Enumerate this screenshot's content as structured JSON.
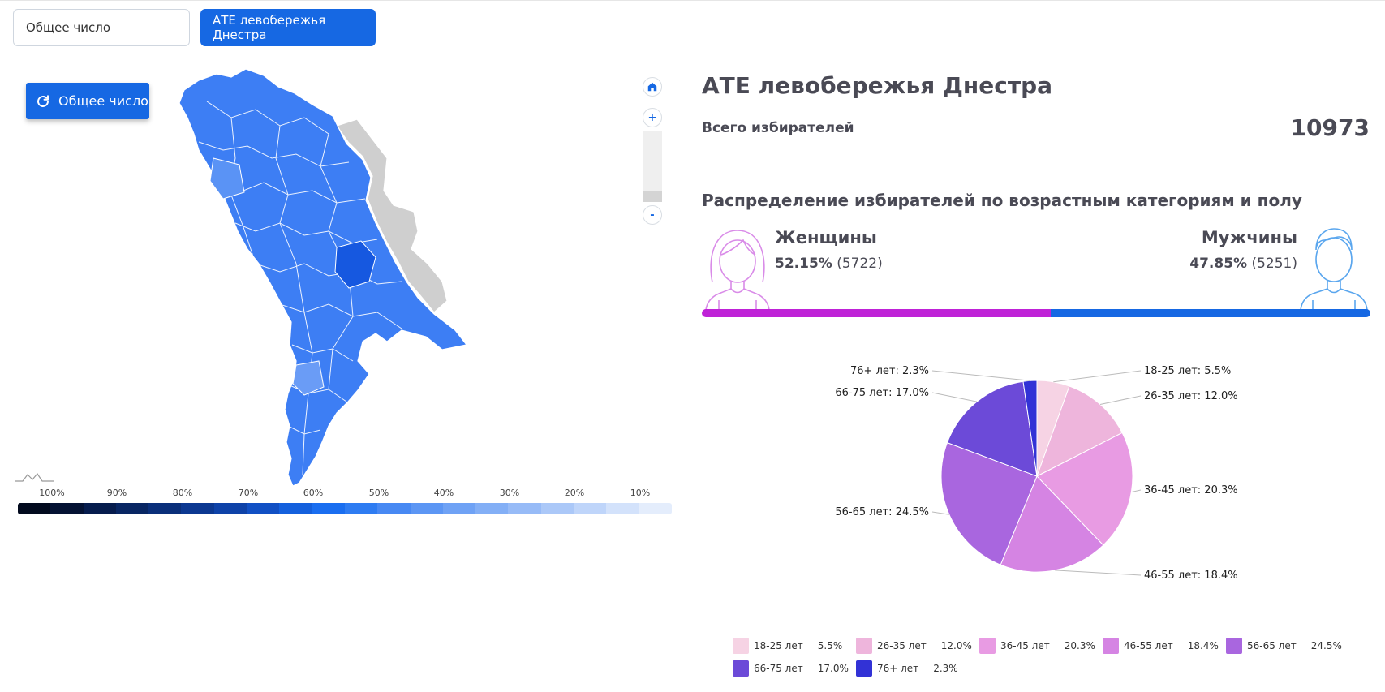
{
  "tabs": [
    {
      "label": "Общее число",
      "active": false
    },
    {
      "label": "АТЕ левобережья Днестра",
      "active": true
    }
  ],
  "map": {
    "reset_label": "Общее число",
    "home_icon": "home-icon",
    "zoom_in": "+",
    "zoom_out": "-",
    "scale_labels": [
      "100%",
      "90%",
      "80%",
      "70%",
      "60%",
      "50%",
      "40%",
      "30%",
      "20%",
      "10%"
    ],
    "scale_colors": [
      "#020a1e",
      "#041233",
      "#061c4d",
      "#082663",
      "#0a2f7a",
      "#0c3891",
      "#0e42a8",
      "#1150c4",
      "#1460dd",
      "#1a6ef0",
      "#2e7cf2",
      "#4889f3",
      "#5c96f4",
      "#6fa2f5",
      "#83aff6",
      "#97bbf7",
      "#abc8f8",
      "#bfd5fa",
      "#d3e2fb",
      "#e4edfc"
    ]
  },
  "panel": {
    "title": "АТЕ левобережья Днестра",
    "voters_label": "Всего избирателей",
    "voters_value": "10973",
    "dist_title": "Распределение избирателей по возрастным категориям и полу",
    "female": {
      "label": "Женщины",
      "pct": "52.15%",
      "count": "(5722)",
      "share": 0.5215,
      "color": "#bf22d7"
    },
    "male": {
      "label": "Мужчины",
      "pct": "47.85%",
      "count": "(5251)",
      "share": 0.4785,
      "color": "#1668e3"
    }
  },
  "chart_data": {
    "type": "pie",
    "categories": [
      "18-25 лет",
      "26-35 лет",
      "36-45 лет",
      "46-55 лет",
      "56-65 лет",
      "66-75 лет",
      "76+ лет"
    ],
    "values": [
      5.5,
      12.0,
      20.3,
      18.4,
      24.5,
      17.0,
      2.3
    ],
    "labels": [
      "18-25 лет: 5.5%",
      "26-35 лет: 12.0%",
      "36-45 лет: 20.3%",
      "46-55 лет: 18.4%",
      "56-65 лет: 24.5%",
      "66-75 лет: 17.0%",
      "76+ лет: 2.3%"
    ],
    "legend_pcts": [
      "5.5%",
      "12.0%",
      "20.3%",
      "18.4%",
      "24.5%",
      "17.0%",
      "2.3%"
    ],
    "colors": [
      "#f6d3e4",
      "#eeb5dc",
      "#e89be3",
      "#d584e3",
      "#a966df",
      "#6c4ad8",
      "#3232d6"
    ],
    "legend_position": "bottom"
  }
}
